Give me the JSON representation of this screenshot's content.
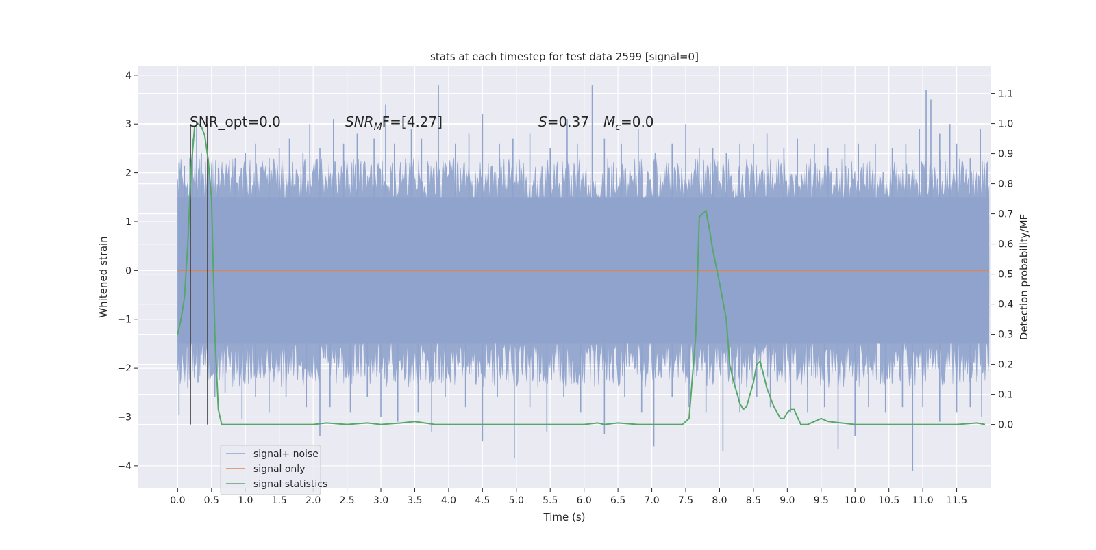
{
  "chart_data": {
    "type": "line",
    "title": "stats at each timestep for test data 2599 [signal=0]",
    "xlabel": "Time (s)",
    "ylabel_left": "Whitened strain",
    "ylabel_right": "Detection probability/MF",
    "xlim": [
      -0.58,
      12.0
    ],
    "ylim_left": [
      -4.45,
      4.18
    ],
    "ylim_right": [
      -0.21,
      1.19
    ],
    "x_ticks": [
      "0.0",
      "0.5",
      "1.0",
      "1.5",
      "2.0",
      "2.5",
      "3.0",
      "3.5",
      "4.0",
      "4.5",
      "5.0",
      "5.5",
      "6.0",
      "6.5",
      "7.0",
      "7.5",
      "8.0",
      "8.5",
      "9.0",
      "9.5",
      "10.0",
      "10.5",
      "11.0",
      "11.5"
    ],
    "y_ticks_left": [
      "4",
      "3",
      "2",
      "1",
      "0",
      "−1",
      "−2",
      "−3",
      "−4"
    ],
    "y_ticks_left_values": [
      4,
      3,
      2,
      1,
      0,
      -1,
      -2,
      -3,
      -4
    ],
    "y_ticks_right": [
      "1.1",
      "1.0",
      "0.9",
      "0.8",
      "0.7",
      "0.6",
      "0.5",
      "0.4",
      "0.3",
      "0.2",
      "0.1",
      "0.0"
    ],
    "y_ticks_right_values": [
      1.1,
      1.0,
      0.9,
      0.8,
      0.7,
      0.6,
      0.5,
      0.4,
      0.3,
      0.2,
      0.1,
      0.0
    ],
    "grid": true,
    "legend_position": "lower-left",
    "annotations": {
      "snr_opt": "SNR_opt=0.0",
      "snr_mf_prefix": "SNR",
      "snr_mf_sub": "M",
      "snr_mf_suffix": "F=[4.27]",
      "s_prefix": "S",
      "s_suffix": "=0.37",
      "mc_prefix": "M",
      "mc_sub": "c",
      "mc_suffix": "=0.0"
    },
    "vertical_markers_x": [
      0.19,
      0.44
    ],
    "series": [
      {
        "name": "signal+ noise",
        "color": "#8fa3cc",
        "t_start": 0.0,
        "t_end": 11.98,
        "band_upper": 1.5,
        "band_lower": -1.5,
        "spikes_up": [
          [
            0.02,
            2.2
          ],
          [
            0.1,
            2.15
          ],
          [
            0.18,
            2.3
          ],
          [
            0.22,
            2.7
          ],
          [
            0.28,
            2.95
          ],
          [
            0.35,
            2.4
          ],
          [
            0.45,
            2.3
          ],
          [
            0.6,
            2.1
          ],
          [
            0.85,
            2.3
          ],
          [
            1.0,
            2.4
          ],
          [
            1.15,
            2.6
          ],
          [
            1.35,
            2.3
          ],
          [
            1.5,
            2.5
          ],
          [
            1.65,
            2.7
          ],
          [
            1.85,
            2.4
          ],
          [
            1.95,
            3.0
          ],
          [
            2.1,
            2.5
          ],
          [
            2.3,
            3.1
          ],
          [
            2.45,
            2.6
          ],
          [
            2.65,
            2.8
          ],
          [
            2.9,
            2.7
          ],
          [
            3.07,
            3.4
          ],
          [
            3.2,
            2.6
          ],
          [
            3.45,
            2.9
          ],
          [
            3.6,
            2.7
          ],
          [
            3.85,
            3.8
          ],
          [
            4.1,
            2.6
          ],
          [
            4.3,
            2.8
          ],
          [
            4.5,
            3.2
          ],
          [
            4.75,
            2.6
          ],
          [
            4.95,
            2.7
          ],
          [
            5.2,
            2.8
          ],
          [
            5.5,
            2.5
          ],
          [
            5.75,
            3.1
          ],
          [
            5.9,
            2.6
          ],
          [
            6.12,
            3.8
          ],
          [
            6.3,
            2.7
          ],
          [
            6.55,
            2.6
          ],
          [
            6.8,
            2.9
          ],
          [
            7.05,
            2.4
          ],
          [
            7.3,
            2.6
          ],
          [
            7.5,
            3.0
          ],
          [
            7.7,
            2.5
          ],
          [
            7.9,
            2.5
          ],
          [
            8.1,
            2.4
          ],
          [
            8.3,
            2.6
          ],
          [
            8.5,
            2.6
          ],
          [
            8.7,
            2.8
          ],
          [
            8.95,
            2.5
          ],
          [
            9.15,
            2.7
          ],
          [
            9.4,
            2.6
          ],
          [
            9.6,
            2.5
          ],
          [
            9.85,
            2.6
          ],
          [
            10.05,
            2.6
          ],
          [
            10.3,
            2.6
          ],
          [
            10.55,
            2.5
          ],
          [
            10.75,
            2.6
          ],
          [
            10.95,
            2.9
          ],
          [
            11.05,
            3.7
          ],
          [
            11.12,
            3.5
          ],
          [
            11.25,
            2.8
          ],
          [
            11.4,
            3.0
          ],
          [
            11.5,
            2.6
          ],
          [
            11.7,
            2.3
          ],
          [
            11.85,
            2.9
          ],
          [
            11.95,
            2.2
          ]
        ],
        "spikes_down": [
          [
            0.02,
            -2.95
          ],
          [
            0.15,
            -2.4
          ],
          [
            0.3,
            -2.3
          ],
          [
            0.55,
            -2.6
          ],
          [
            0.7,
            -2.5
          ],
          [
            0.95,
            -3.05
          ],
          [
            1.15,
            -2.6
          ],
          [
            1.35,
            -2.9
          ],
          [
            1.6,
            -2.6
          ],
          [
            1.9,
            -2.8
          ],
          [
            2.1,
            -3.4
          ],
          [
            2.25,
            -2.8
          ],
          [
            2.55,
            -2.9
          ],
          [
            2.8,
            -2.6
          ],
          [
            3.0,
            -3.0
          ],
          [
            3.25,
            -3.1
          ],
          [
            3.55,
            -2.9
          ],
          [
            3.75,
            -3.3
          ],
          [
            3.95,
            -2.6
          ],
          [
            4.25,
            -2.8
          ],
          [
            4.5,
            -3.5
          ],
          [
            4.72,
            -2.6
          ],
          [
            4.97,
            -3.85
          ],
          [
            5.2,
            -2.8
          ],
          [
            5.45,
            -3.3
          ],
          [
            5.7,
            -2.6
          ],
          [
            5.95,
            -2.9
          ],
          [
            6.3,
            -3.35
          ],
          [
            6.6,
            -2.6
          ],
          [
            6.85,
            -2.9
          ],
          [
            7.03,
            -3.6
          ],
          [
            7.3,
            -2.6
          ],
          [
            7.55,
            -2.8
          ],
          [
            7.8,
            -2.9
          ],
          [
            8.05,
            -3.7
          ],
          [
            8.3,
            -2.9
          ],
          [
            8.55,
            -2.6
          ],
          [
            8.75,
            -2.8
          ],
          [
            9.05,
            -2.9
          ],
          [
            9.3,
            -2.9
          ],
          [
            9.55,
            -2.8
          ],
          [
            9.75,
            -3.65
          ],
          [
            10.0,
            -3.4
          ],
          [
            10.2,
            -2.8
          ],
          [
            10.45,
            -2.9
          ],
          [
            10.7,
            -2.8
          ],
          [
            10.85,
            -4.1
          ],
          [
            11.0,
            -2.8
          ],
          [
            11.25,
            -3.1
          ],
          [
            11.5,
            -2.9
          ],
          [
            11.7,
            -2.8
          ],
          [
            11.87,
            -3.0
          ]
        ]
      },
      {
        "name": "signal only",
        "color": "#dd8452",
        "x": [
          0.0,
          11.98
        ],
        "y": [
          0.0,
          0.0
        ]
      },
      {
        "name": "signal statistics",
        "color": "#55a868",
        "axis": "right",
        "x": [
          0.0,
          0.05,
          0.1,
          0.15,
          0.2,
          0.25,
          0.3,
          0.35,
          0.4,
          0.45,
          0.5,
          0.55,
          0.6,
          0.65,
          0.7,
          1.0,
          1.5,
          2.0,
          2.2,
          2.5,
          2.8,
          3.0,
          3.3,
          3.5,
          3.8,
          4.5,
          5.0,
          5.5,
          6.0,
          6.2,
          6.3,
          6.5,
          6.8,
          7.0,
          7.2,
          7.45,
          7.55,
          7.65,
          7.7,
          7.75,
          7.8,
          7.85,
          7.9,
          8.0,
          8.1,
          8.15,
          8.2,
          8.3,
          8.35,
          8.4,
          8.5,
          8.55,
          8.6,
          8.7,
          8.8,
          8.9,
          8.95,
          9.0,
          9.05,
          9.1,
          9.2,
          9.3,
          9.4,
          9.5,
          9.6,
          9.8,
          10.0,
          10.5,
          11.0,
          11.5,
          11.8,
          11.92
        ],
        "y": [
          0.3,
          0.35,
          0.42,
          0.6,
          0.85,
          0.99,
          1.0,
          0.99,
          0.96,
          0.88,
          0.75,
          0.3,
          0.05,
          0.0,
          0.0,
          0.0,
          0.0,
          0.0,
          0.005,
          0.0,
          0.005,
          0.0,
          0.005,
          0.01,
          0.0,
          0.0,
          0.0,
          0.0,
          0.0,
          0.005,
          0.0,
          0.005,
          0.0,
          0.0,
          0.0,
          0.0,
          0.02,
          0.3,
          0.69,
          0.7,
          0.71,
          0.65,
          0.58,
          0.47,
          0.35,
          0.2,
          0.15,
          0.07,
          0.05,
          0.06,
          0.14,
          0.2,
          0.21,
          0.12,
          0.06,
          0.02,
          0.02,
          0.04,
          0.05,
          0.05,
          0.0,
          0.0,
          0.01,
          0.02,
          0.01,
          0.005,
          0.0,
          0.0,
          0.0,
          0.0,
          0.005,
          0.0
        ]
      }
    ]
  }
}
